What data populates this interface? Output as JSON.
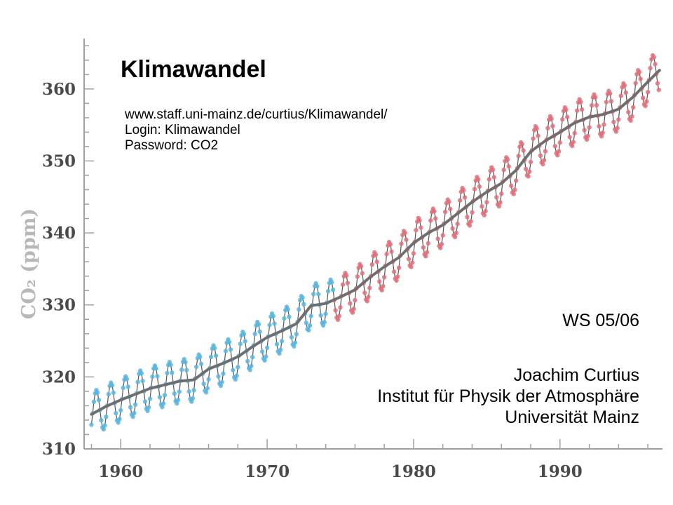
{
  "header": {
    "title": "Klimawandel",
    "url": "www.staff.uni-mainz.de/curtius/Klimawandel/",
    "login": "Login: Klimawandel",
    "password": "Password: CO2"
  },
  "credits": {
    "semester": "WS 05/06",
    "author": "Joachim Curtius",
    "institute": "Institut für Physik der Atmosphäre",
    "university": "Universität Mainz"
  },
  "colors": {
    "trend_line": "#6e6e6e",
    "monthly_line": "#555555",
    "series_early": "#5bb7e0",
    "series_late": "#e2707a",
    "axis": "#a0a0a0",
    "axis_label": "#b8b8b8"
  },
  "chart_data": {
    "type": "line",
    "title": "",
    "xlabel": "",
    "ylabel": "CO₂ (ppm)",
    "xlim": [
      1957.5,
      1997
    ],
    "ylim": [
      310,
      367
    ],
    "x_ticks": [
      1960,
      1970,
      1980,
      1990
    ],
    "y_ticks": [
      310,
      320,
      330,
      340,
      350,
      360
    ],
    "grid": false,
    "legend": "none",
    "seasonal_amplitude_ppm": 3.0,
    "color_change_year": 1974.5,
    "series": [
      {
        "x": [
          1958,
          1959,
          1960,
          1961,
          1962,
          1963,
          1964,
          1965,
          1966,
          1967,
          1968,
          1969,
          1970,
          1971,
          1972,
          1973,
          1974,
          1975,
          1976,
          1977,
          1978,
          1979,
          1980,
          1981,
          1982,
          1983,
          1984,
          1985,
          1986,
          1987,
          1988,
          1989,
          1990,
          1991,
          1992,
          1993,
          1994,
          1995,
          1996,
          1996.8
        ],
        "y": [
          314.8,
          315.9,
          316.8,
          317.6,
          318.4,
          318.9,
          319.4,
          319.6,
          321.1,
          321.9,
          322.8,
          324.2,
          325.5,
          326.4,
          327.4,
          329.9,
          330.2,
          331.1,
          332.1,
          333.8,
          335.3,
          336.6,
          338.6,
          340.0,
          341.1,
          342.7,
          344.3,
          345.7,
          346.9,
          348.7,
          351.3,
          352.8,
          354.0,
          355.3,
          356.1,
          356.5,
          357.2,
          358.9,
          361.0,
          362.6
        ]
      }
    ]
  }
}
